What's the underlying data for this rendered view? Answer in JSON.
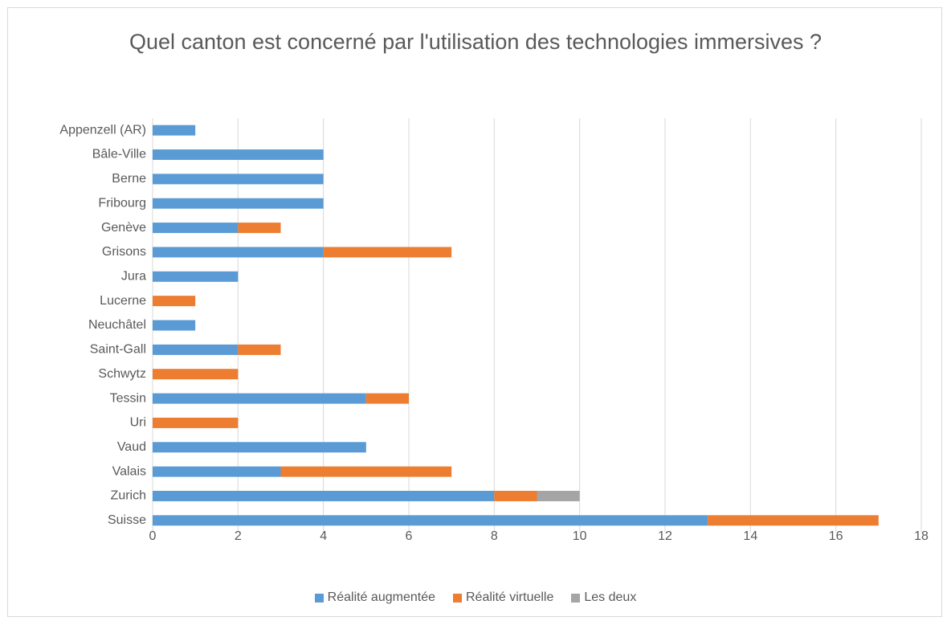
{
  "chart_data": {
    "type": "bar",
    "orientation": "horizontal",
    "stacked": true,
    "title": "Quel canton est concerné par l'utilisation des technologies immersives ?",
    "categories": [
      "Appenzell (AR)",
      "Bâle-Ville",
      "Berne",
      "Fribourg",
      "Genève",
      "Grisons",
      "Jura",
      "Lucerne",
      "Neuchâtel",
      "Saint-Gall",
      "Schwytz",
      "Tessin",
      "Uri",
      "Vaud",
      "Valais",
      "Zurich",
      "Suisse"
    ],
    "series": [
      {
        "name": "Réalité augmentée",
        "color": "#5b9bd5",
        "values": [
          1,
          4,
          4,
          4,
          2,
          4,
          2,
          0,
          1,
          2,
          0,
          5,
          0,
          5,
          3,
          8,
          13
        ]
      },
      {
        "name": "Réalité virtuelle",
        "color": "#ed7d31",
        "values": [
          0,
          0,
          0,
          0,
          1,
          3,
          0,
          1,
          0,
          1,
          2,
          1,
          2,
          0,
          4,
          1,
          4
        ]
      },
      {
        "name": "Les deux",
        "color": "#a5a5a5",
        "values": [
          0,
          0,
          0,
          0,
          0,
          0,
          0,
          0,
          0,
          0,
          0,
          0,
          0,
          0,
          0,
          1,
          0
        ]
      }
    ],
    "xlim": [
      0,
      18
    ],
    "xticks": [
      0,
      2,
      4,
      6,
      8,
      10,
      12,
      14,
      16,
      18
    ],
    "grid": true,
    "legend": "bottom"
  }
}
